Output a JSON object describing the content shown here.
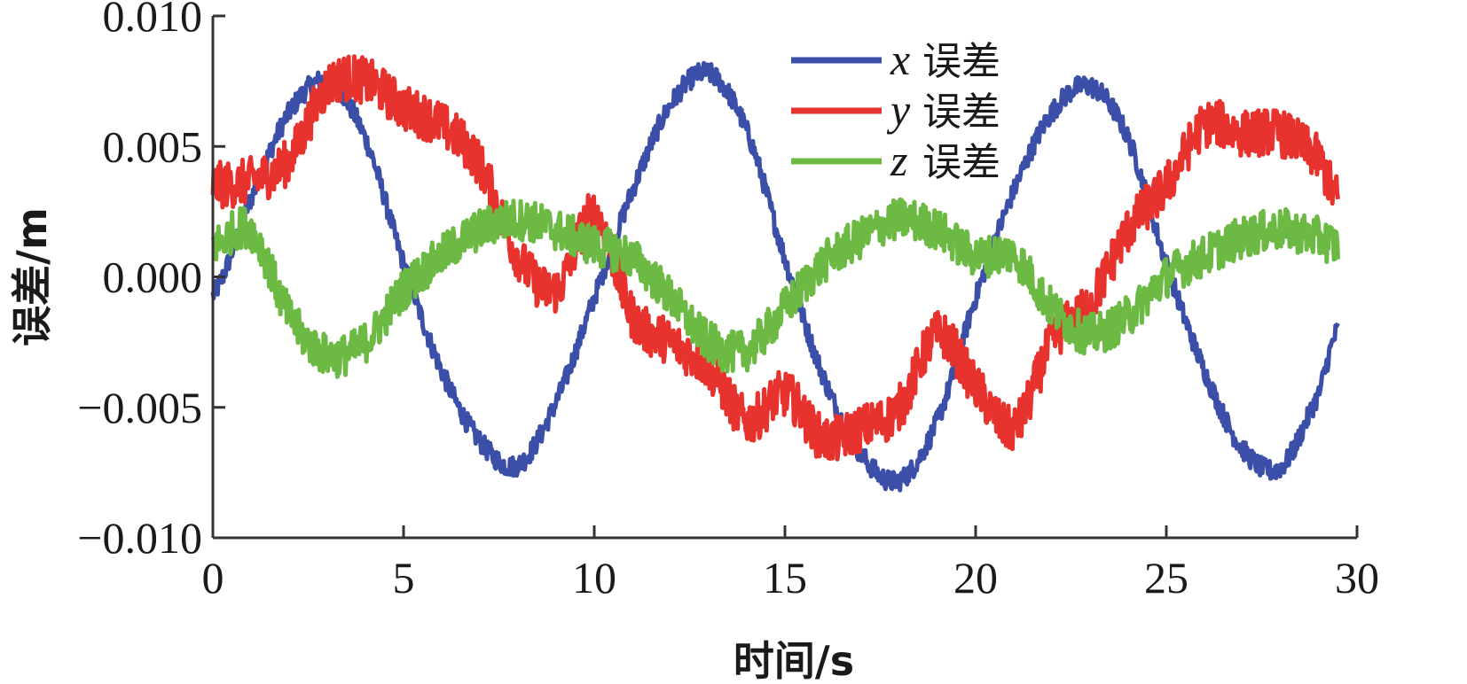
{
  "chart_data": {
    "type": "line",
    "xlabel": "时间/s",
    "ylabel": "误差/m",
    "xlim": [
      0,
      30
    ],
    "ylim": [
      -0.01,
      0.01
    ],
    "x_ticks": [
      "0",
      "5",
      "10",
      "15",
      "20",
      "25",
      "30"
    ],
    "y_ticks": [
      "0.010",
      "0.005",
      "0.000",
      "−0.005",
      "−0.010"
    ],
    "grid": false,
    "legend_position": "top-center",
    "x": [
      0,
      1,
      2,
      3,
      4,
      5,
      6,
      7,
      8,
      9,
      10,
      11,
      12,
      13,
      14,
      15,
      16,
      17,
      18,
      19,
      20,
      21,
      22,
      23,
      24,
      25,
      26,
      27,
      28,
      29,
      29.5
    ],
    "series": [
      {
        "var": "x",
        "label": "误差",
        "color": "#3b4fa8",
        "noise": 0.0004,
        "values": [
          -0.0007,
          0.003,
          0.0063,
          0.0075,
          0.0053,
          0.0005,
          -0.0036,
          -0.0063,
          -0.0072,
          -0.0048,
          -0.0008,
          0.0033,
          0.0066,
          0.0078,
          0.0056,
          0.0007,
          -0.0038,
          -0.0068,
          -0.0078,
          -0.0055,
          -0.0008,
          0.0033,
          0.0063,
          0.0073,
          0.0053,
          0.0005,
          -0.0036,
          -0.0066,
          -0.0073,
          -0.0045,
          -0.002
        ]
      },
      {
        "var": "y",
        "label": "误差",
        "color": "#e8322e",
        "noise": 0.0009,
        "values": [
          0.0035,
          0.0037,
          0.0045,
          0.0073,
          0.0075,
          0.0065,
          0.0058,
          0.0043,
          0.0008,
          -0.0005,
          0.0024,
          -0.0015,
          -0.0025,
          -0.0035,
          -0.0055,
          -0.0045,
          -0.0062,
          -0.0058,
          -0.005,
          -0.0022,
          -0.0042,
          -0.0058,
          -0.0025,
          -0.001,
          0.0018,
          0.0035,
          0.0058,
          0.0055,
          0.0055,
          0.0045,
          0.003
        ]
      },
      {
        "var": "z",
        "label": "误差",
        "color": "#6cba44",
        "noise": 0.0008,
        "values": [
          0.0012,
          0.0018,
          -0.0015,
          -0.003,
          -0.0025,
          -0.0005,
          0.0008,
          0.0018,
          0.0022,
          0.0018,
          0.0012,
          0.0007,
          -0.0008,
          -0.0025,
          -0.0028,
          -0.0012,
          0.0005,
          0.0015,
          0.0022,
          0.0018,
          0.0008,
          0.0008,
          -0.0012,
          -0.0022,
          -0.0015,
          0.0,
          0.0008,
          0.0015,
          0.0018,
          0.0015,
          0.0012
        ]
      }
    ]
  }
}
